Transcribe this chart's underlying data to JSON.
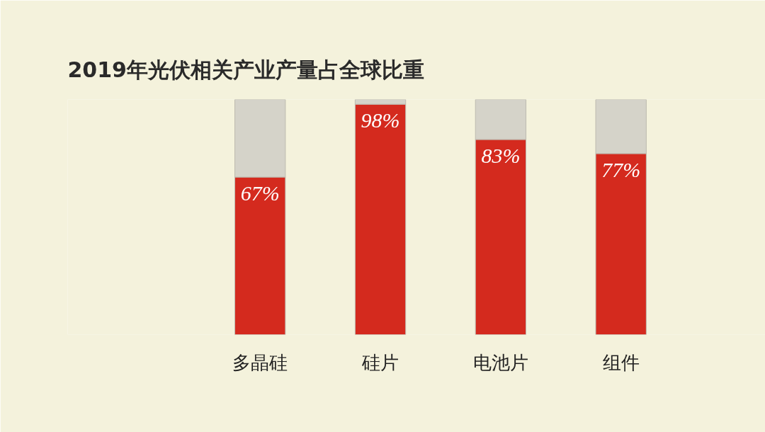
{
  "chart_data": {
    "type": "bar",
    "title": "2019年光伏相关产业产量占全球比重",
    "categories": [
      "多晶硅",
      "硅片",
      "电池片",
      "组件"
    ],
    "stacked": true,
    "ylim": [
      0,
      100
    ],
    "tick_labels": "x",
    "grid": false,
    "series": [
      {
        "color": "#d42a1e",
        "values": [
          67,
          98,
          83,
          77
        ],
        "value_labels": [
          "67%",
          "98%",
          "83%",
          "77%"
        ]
      },
      {
        "color": "#d5d3c9",
        "values": [
          33,
          2,
          17,
          23
        ]
      }
    ]
  }
}
